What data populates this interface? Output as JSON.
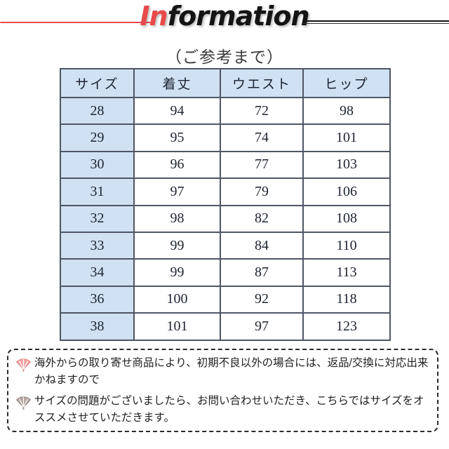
{
  "header": {
    "title_red": "In",
    "title_black": "formation",
    "subtitle": "（ご参考まで）",
    "accent_red": "#e84a4b",
    "line_black": "#141414"
  },
  "table": {
    "columns": [
      "サイズ",
      "着丈",
      "ウエスト",
      "ヒップ"
    ],
    "rows": [
      [
        "28",
        "94",
        "72",
        "98"
      ],
      [
        "29",
        "95",
        "74",
        "101"
      ],
      [
        "30",
        "96",
        "77",
        "103"
      ],
      [
        "31",
        "97",
        "79",
        "106"
      ],
      [
        "32",
        "98",
        "82",
        "108"
      ],
      [
        "33",
        "99",
        "84",
        "110"
      ],
      [
        "34",
        "99",
        "87",
        "113"
      ],
      [
        "36",
        "100",
        "92",
        "118"
      ],
      [
        "38",
        "101",
        "97",
        "123"
      ]
    ],
    "header_bg": "#cfe1f3",
    "border_color": "#4e5565"
  },
  "notes": {
    "items": [
      {
        "icon": "fan-icon",
        "icon_fill": "#f4a5a3",
        "icon_stroke": "#d97e7d",
        "text": "海外からの取り寄せ商品により、初期不良以外の場合には、返品/交換に対応出来かねますので"
      },
      {
        "icon": "fan-icon",
        "icon_fill": "#b5a7a1",
        "icon_stroke": "#8d7f79",
        "text": "サイズの問題がございましたら、お問い合わせいただき、こちらではサイズをオススメさせていただきます。"
      }
    ]
  }
}
